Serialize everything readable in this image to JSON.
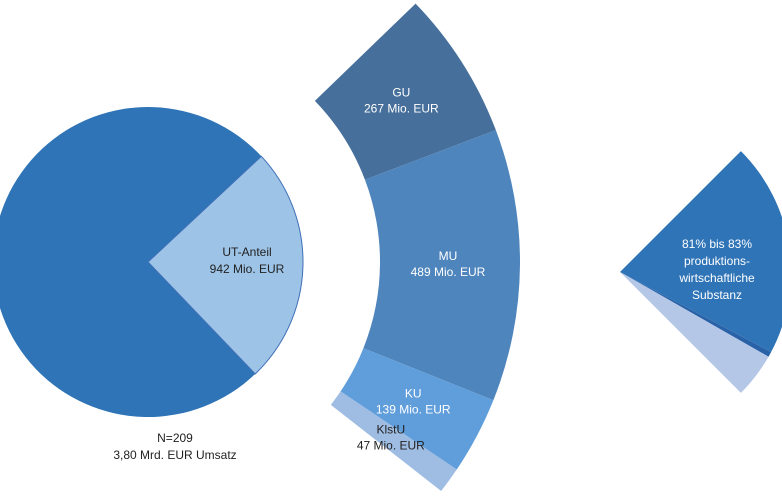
{
  "chart_data": {
    "type": "pie-of-pie",
    "main": {
      "count_label": "N=209",
      "total": 3800,
      "total_label": "3,80 Mrd. EUR Umsatz",
      "ut_label": "UT-Anteil",
      "ut_value": 942,
      "ut_value_label": "942 Mio. EUR",
      "color": "#2e74b7",
      "ut_color": "#9dc3e6"
    },
    "breakdown": {
      "categories": [
        "GU",
        "MU",
        "KU",
        "KlstU"
      ],
      "values": [
        267,
        489,
        139,
        47
      ],
      "value_labels": [
        "267 Mio. EUR",
        "489 Mio. EUR",
        "139 Mio. EUR",
        "47 Mio. EUR"
      ],
      "colors": [
        "#466f9b",
        "#4e85bd",
        "#5f9ddb",
        "#9fbde3"
      ]
    },
    "substance": {
      "low": 81,
      "high": 83,
      "label_lines": [
        "81% bis 83%",
        "produktions-",
        "wirtschaftliche",
        "Substanz"
      ],
      "colors": [
        "#2e74b7",
        "#2a62a8",
        "#b4c7e7"
      ]
    }
  }
}
